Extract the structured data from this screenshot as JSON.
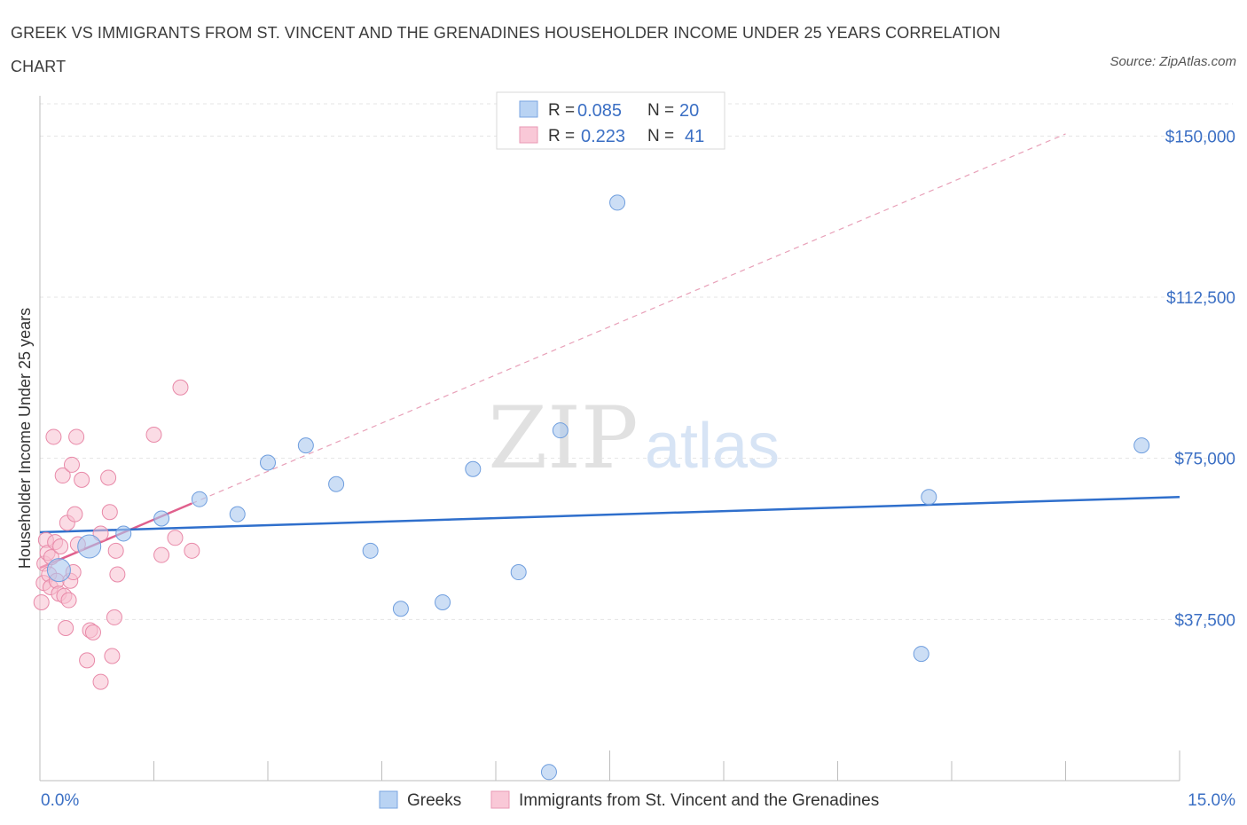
{
  "title": "GREEK VS IMMIGRANTS FROM ST. VINCENT AND THE GRENADINES HOUSEHOLDER INCOME UNDER 25 YEARS CORRELATION CHART",
  "source": "Source: ZipAtlas.com",
  "watermark": {
    "zip": "ZIP",
    "atlas": "atlas"
  },
  "legend": {
    "rows": [
      {
        "r_label": "R =",
        "r_value": "0.085",
        "n_label": "N =",
        "n_value": "20"
      },
      {
        "r_label": "R =",
        "r_value": "0.223",
        "n_label": "N =",
        "n_value": "41"
      }
    ]
  },
  "chart_data": {
    "type": "scatter",
    "title": "GREEK VS IMMIGRANTS FROM ST. VINCENT AND THE GRENADINES HOUSEHOLDER INCOME UNDER 25 YEARS CORRELATION CHART",
    "xlabel": "",
    "ylabel": "Householder Income Under 25 years",
    "xlim": [
      0,
      15
    ],
    "ylim": [
      0,
      157500
    ],
    "x_tick_labels": [
      "0.0%",
      "15.0%"
    ],
    "y_ticks": [
      37500,
      75000,
      112500,
      150000
    ],
    "y_tick_labels": [
      "$37,500",
      "$75,000",
      "$112,500",
      "$150,000"
    ],
    "series": [
      {
        "name": "Greeks",
        "color": "#aac8ef",
        "stroke": "#6f9ede",
        "r": 0.085,
        "n": 20,
        "trend": {
          "x0": 0.0,
          "y0": 57800,
          "x1": 15.0,
          "y1": 66000,
          "color": "#2f6fcc"
        },
        "points": [
          {
            "x": 0.25,
            "y": 49000,
            "big": true
          },
          {
            "x": 0.65,
            "y": 54500,
            "big": true
          },
          {
            "x": 1.1,
            "y": 57500
          },
          {
            "x": 1.6,
            "y": 61000
          },
          {
            "x": 2.1,
            "y": 65500
          },
          {
            "x": 2.6,
            "y": 62000
          },
          {
            "x": 3.0,
            "y": 74000
          },
          {
            "x": 3.5,
            "y": 78000
          },
          {
            "x": 3.9,
            "y": 69000
          },
          {
            "x": 4.35,
            "y": 53500
          },
          {
            "x": 4.75,
            "y": 40000
          },
          {
            "x": 5.3,
            "y": 41500
          },
          {
            "x": 5.7,
            "y": 72500
          },
          {
            "x": 6.3,
            "y": 48500
          },
          {
            "x": 6.85,
            "y": 81500
          },
          {
            "x": 7.6,
            "y": 134500
          },
          {
            "x": 11.6,
            "y": 29500
          },
          {
            "x": 11.7,
            "y": 66000
          },
          {
            "x": 14.5,
            "y": 78000
          },
          {
            "x": 6.7,
            "y": 2000
          }
        ]
      },
      {
        "name": "Immigrants from St. Vincent and the Grenadines",
        "color": "#f7bfd0",
        "stroke": "#e889a8",
        "r": 0.223,
        "n": 41,
        "trend_solid": {
          "x0": 0.0,
          "y0": 49500,
          "x1": 2.0,
          "y1": 64500,
          "color": "#e0608d"
        },
        "trend_dashed": {
          "x0": 2.0,
          "y0": 64500,
          "x1": 13.5,
          "y1": 150500,
          "color": "#e8a0b8"
        },
        "points": [
          {
            "x": 0.02,
            "y": 41500
          },
          {
            "x": 0.05,
            "y": 46000
          },
          {
            "x": 0.06,
            "y": 50500
          },
          {
            "x": 0.08,
            "y": 56000
          },
          {
            "x": 0.1,
            "y": 53000
          },
          {
            "x": 0.12,
            "y": 48000
          },
          {
            "x": 0.14,
            "y": 45000
          },
          {
            "x": 0.15,
            "y": 52000
          },
          {
            "x": 0.18,
            "y": 80000
          },
          {
            "x": 0.2,
            "y": 55500
          },
          {
            "x": 0.22,
            "y": 46500
          },
          {
            "x": 0.25,
            "y": 43500
          },
          {
            "x": 0.27,
            "y": 54500
          },
          {
            "x": 0.3,
            "y": 71000
          },
          {
            "x": 0.32,
            "y": 43000
          },
          {
            "x": 0.34,
            "y": 35500
          },
          {
            "x": 0.36,
            "y": 60000
          },
          {
            "x": 0.38,
            "y": 42000
          },
          {
            "x": 0.4,
            "y": 46500
          },
          {
            "x": 0.42,
            "y": 73500
          },
          {
            "x": 0.44,
            "y": 48500
          },
          {
            "x": 0.46,
            "y": 62000
          },
          {
            "x": 0.48,
            "y": 80000
          },
          {
            "x": 0.5,
            "y": 55000
          },
          {
            "x": 0.55,
            "y": 70000
          },
          {
            "x": 0.62,
            "y": 28000
          },
          {
            "x": 0.66,
            "y": 35000
          },
          {
            "x": 0.7,
            "y": 34500
          },
          {
            "x": 0.8,
            "y": 57500
          },
          {
            "x": 0.9,
            "y": 70500
          },
          {
            "x": 0.95,
            "y": 29000
          },
          {
            "x": 0.98,
            "y": 38000
          },
          {
            "x": 0.92,
            "y": 62500
          },
          {
            "x": 1.0,
            "y": 53500
          },
          {
            "x": 1.02,
            "y": 48000
          },
          {
            "x": 1.5,
            "y": 80500
          },
          {
            "x": 1.6,
            "y": 52500
          },
          {
            "x": 1.78,
            "y": 56500
          },
          {
            "x": 1.85,
            "y": 91500
          },
          {
            "x": 2.0,
            "y": 53500
          },
          {
            "x": 0.8,
            "y": 23000
          }
        ]
      }
    ]
  }
}
